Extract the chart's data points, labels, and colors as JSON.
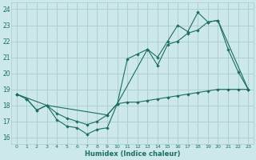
{
  "xlabel": "Humidex (Indice chaleur)",
  "bg_color": "#cce8e8",
  "grid_color": "#aacccc",
  "line_color": "#1a6e64",
  "xlim": [
    -0.5,
    23.5
  ],
  "ylim": [
    15.6,
    24.4
  ],
  "xticks": [
    0,
    1,
    2,
    3,
    4,
    5,
    6,
    7,
    8,
    9,
    10,
    11,
    12,
    13,
    14,
    15,
    16,
    17,
    18,
    19,
    20,
    21,
    22,
    23
  ],
  "yticks": [
    16,
    17,
    18,
    19,
    20,
    21,
    22,
    23,
    24
  ],
  "line1_x": [
    0,
    1,
    2,
    3,
    4,
    5,
    6,
    7,
    8,
    9,
    10,
    11,
    12,
    13,
    14,
    15,
    16,
    17,
    18,
    19,
    20,
    21,
    22,
    23
  ],
  "line1_y": [
    18.7,
    18.4,
    17.7,
    18.0,
    17.1,
    16.7,
    16.6,
    16.2,
    16.5,
    16.6,
    18.1,
    18.2,
    18.2,
    18.3,
    18.4,
    18.5,
    18.6,
    18.7,
    18.8,
    18.9,
    19.0,
    19.0,
    19.0,
    19.0
  ],
  "line2_x": [
    0,
    1,
    2,
    3,
    4,
    5,
    6,
    7,
    8,
    9,
    10,
    11,
    12,
    13,
    14,
    15,
    16,
    17,
    18,
    19,
    20,
    21,
    22,
    23
  ],
  "line2_y": [
    18.7,
    18.4,
    17.7,
    18.0,
    17.5,
    17.2,
    17.0,
    16.8,
    17.0,
    17.4,
    18.1,
    20.9,
    21.2,
    21.5,
    20.5,
    21.8,
    22.0,
    22.5,
    22.7,
    23.2,
    23.3,
    21.5,
    20.1,
    19.0
  ],
  "line3_x": [
    0,
    3,
    9,
    10,
    13,
    14,
    15,
    16,
    17,
    18,
    19,
    20,
    23
  ],
  "line3_y": [
    18.7,
    18.0,
    17.4,
    18.1,
    21.5,
    21.0,
    22.0,
    23.0,
    22.6,
    23.8,
    23.2,
    23.3,
    19.0
  ]
}
